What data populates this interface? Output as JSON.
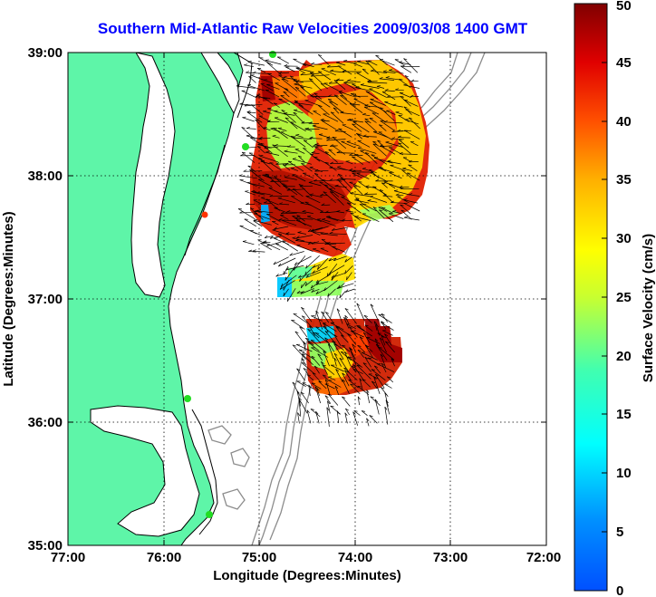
{
  "title": "Southern Mid-Atlantic Raw Velocities 2009/03/08 1400 GMT",
  "axes": {
    "xlabel": "Longitude (Degrees:Minutes)",
    "ylabel": "Latitude (Degrees:Minutes)",
    "x_ticks": [
      "77:00",
      "76:00",
      "75:00",
      "74:00",
      "73:00",
      "72:00"
    ],
    "y_ticks": [
      "35:00",
      "36:00",
      "37:00",
      "38:00",
      "39:00"
    ]
  },
  "colorbar": {
    "label": "Surface Velocity (cm/s)",
    "ticks": [
      "0",
      "5",
      "10",
      "15",
      "20",
      "25",
      "30",
      "35",
      "40",
      "45",
      "50"
    ],
    "range": [
      0,
      50
    ],
    "colormap": "jet"
  },
  "colors": {
    "land": "#5ef5a8",
    "coast": "#000000",
    "bathymetry": "#8c8c8c",
    "title": "#0000ff",
    "station": "#22dd22",
    "station_alt": "#ff3300"
  },
  "map": {
    "lon_range": [
      -77,
      -72
    ],
    "lat_range": [
      35,
      39
    ],
    "grid": "dotted"
  }
}
